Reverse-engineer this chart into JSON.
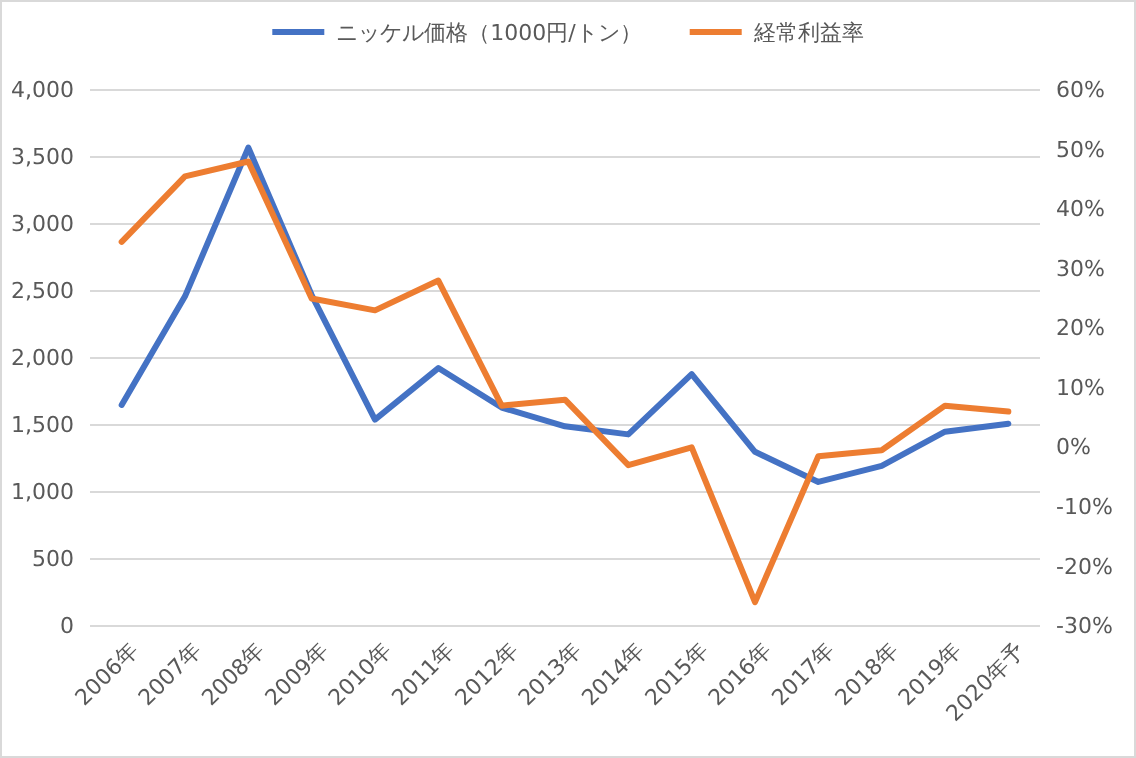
{
  "chart_data": {
    "type": "line",
    "categories": [
      "2006年",
      "2007年",
      "2008年",
      "2009年",
      "2010年",
      "2011年",
      "2012年",
      "2013年",
      "2014年",
      "2015年",
      "2016年",
      "2017年",
      "2018年",
      "2019年",
      "2020年予"
    ],
    "series": [
      {
        "name": "ニッケル価格（1000円/トン）",
        "color": "#4472c4",
        "values": [
          1650,
          2460,
          3570,
          2470,
          1540,
          1925,
          1630,
          1490,
          1430,
          1880,
          1300,
          1075,
          1195,
          1450,
          1510
        ]
      },
      {
        "name": "経常利益率",
        "color": "#ed7d31",
        "axis": "y2",
        "values": [
          34.5,
          45.5,
          48,
          25,
          23,
          28,
          7,
          8,
          -3,
          0,
          -26,
          -1.5,
          -0.5,
          7,
          6
        ]
      }
    ],
    "ylim": [
      0,
      4000
    ],
    "yticks": [
      {
        "value": 0,
        "label": "0"
      },
      {
        "value": 500,
        "label": "500"
      },
      {
        "value": 1000,
        "label": "1,000"
      },
      {
        "value": 1500,
        "label": "1,500"
      },
      {
        "value": 2000,
        "label": "2,000"
      },
      {
        "value": 2500,
        "label": "2,500"
      },
      {
        "value": 3000,
        "label": "3,000"
      },
      {
        "value": 3500,
        "label": "3,500"
      },
      {
        "value": 4000,
        "label": "4,000"
      }
    ],
    "y2lim": [
      -30,
      60
    ],
    "y2ticks": [
      {
        "value": -30,
        "label": "-30%"
      },
      {
        "value": -20,
        "label": "-20%"
      },
      {
        "value": -10,
        "label": "-10%"
      },
      {
        "value": 0,
        "label": "0%"
      },
      {
        "value": 10,
        "label": "10%"
      },
      {
        "value": 20,
        "label": "20%"
      },
      {
        "value": 30,
        "label": "30%"
      },
      {
        "value": 40,
        "label": "40%"
      },
      {
        "value": 50,
        "label": "50%"
      },
      {
        "value": 60,
        "label": "60%"
      }
    ],
    "grid": "y",
    "legend": "top",
    "marker": "none",
    "line_style": "solid"
  }
}
